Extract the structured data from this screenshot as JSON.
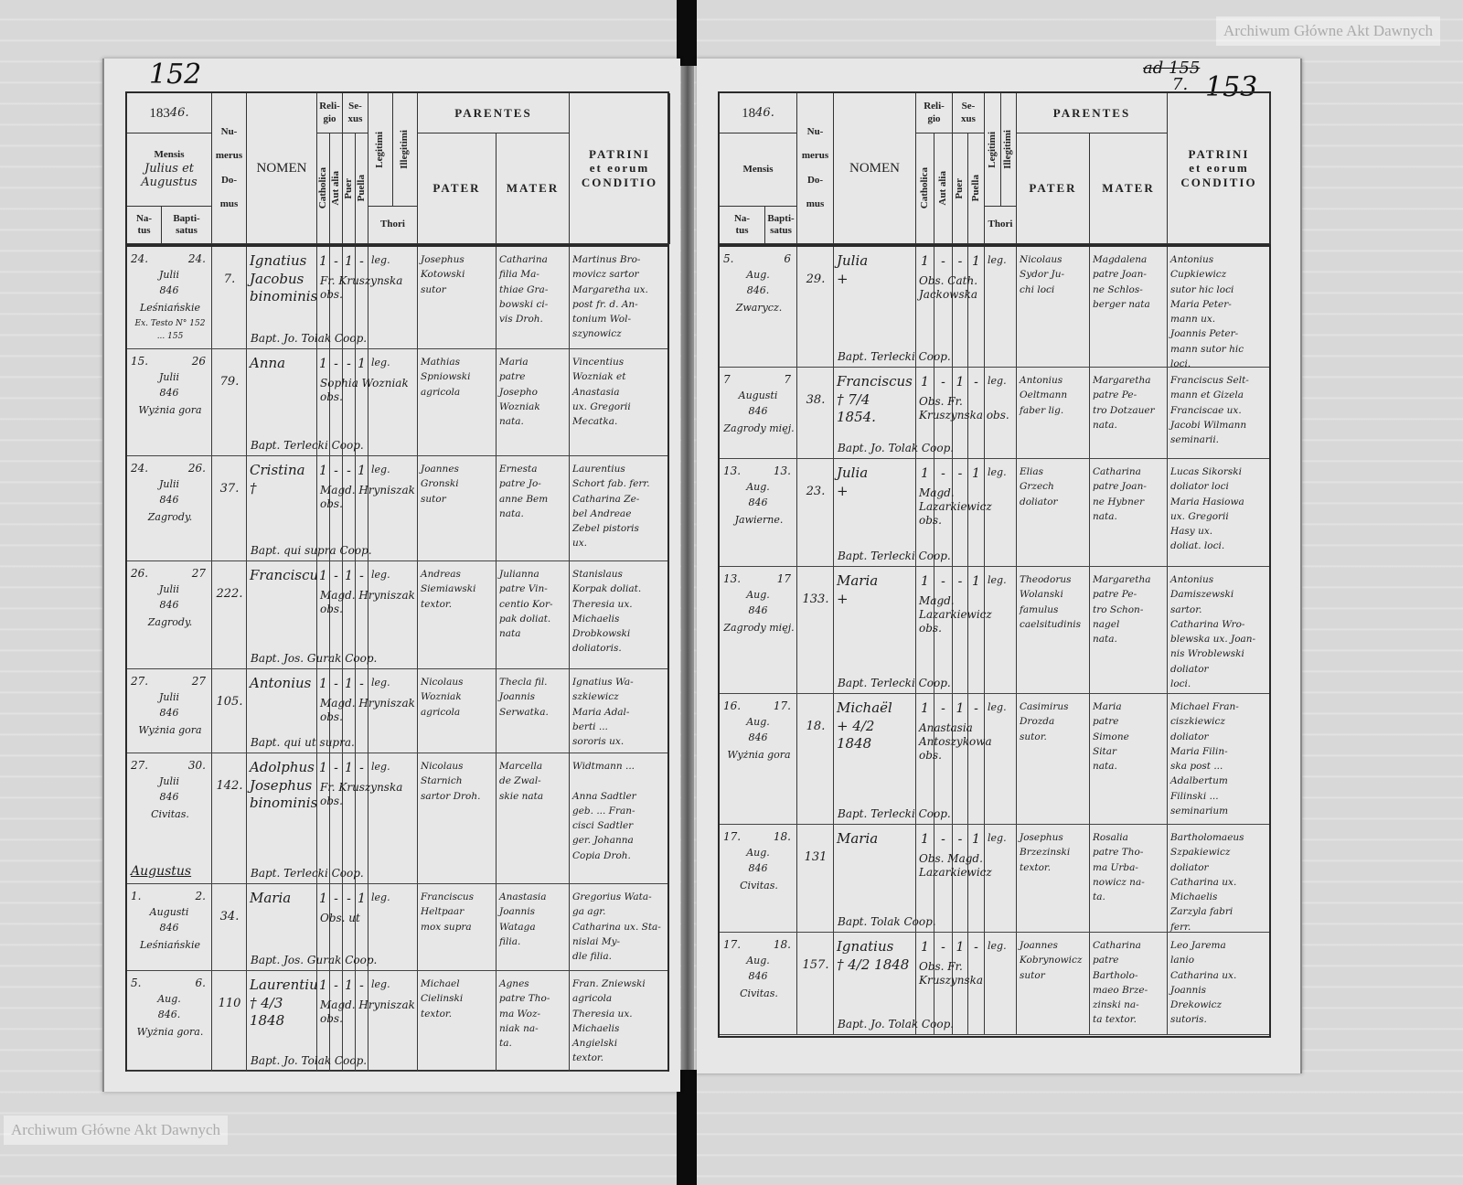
{
  "watermark": "Archiwum Główne Akt Dawnych",
  "header": {
    "year": "18",
    "year_hand": "46.",
    "mensis": "Mensis",
    "natus": "Na-\ntus",
    "baptisatus": "Bapti-\nsatus",
    "numerus_domus": "Nu-\n\nmerus\n\nDo-\n\nmus",
    "nomen": "NOMEN",
    "religio": "Reli-\ngio",
    "catholica": "Catholica",
    "aut_alia": "Aut alia",
    "sexus": "Se-\nxus",
    "puer": "Puer",
    "puella": "Puella",
    "legitimi": "Legitimi",
    "illegitimi": "Illegitimi",
    "thori": "Thori",
    "parentes": "PARENTES",
    "pater": "PATER",
    "mater": "MATER",
    "patrini": "PATRINI\net eorum\nCONDITIO"
  },
  "left_page": {
    "page_number": "152",
    "year_print": "183",
    "mensis_hand": "Julius et\nAugustus",
    "month_divider": "Augustus",
    "rows": [
      {
        "natus": "24.",
        "baptisatus": "24.",
        "mensis": "Julii\n846",
        "locus": "Leśniańskie",
        "domus": "7.",
        "nomen": "Ignatius\nJacobus\nbinominis",
        "catholica": "1",
        "aut_alia": "-",
        "puer": "1",
        "puella": "-",
        "legitimi": "leg.",
        "pater": "Josephus\nKotowski\nsutor",
        "mater": "Catharina\nfilia Ma-\nthiae Gra-\nbowski ci-\nvis Droh.",
        "patrini": "Martinus Bro-\nmovicz sartor\nMargaretha ux.\npost fr. d. An-\ntonium Wol-\nszynowicz",
        "baptizans": "Bapt. Jo. Tolak Coop.",
        "obstetrix": "Fr. Kruszynska obs.",
        "margin": "Ex. Testo N° 152\n... 155"
      },
      {
        "natus": "15.",
        "baptisatus": "26",
        "mensis": "Julii\n846",
        "locus": "Wyżnia gora",
        "domus": "79.",
        "nomen": "Anna",
        "catholica": "1",
        "aut_alia": "-",
        "puer": "-",
        "puella": "1",
        "legitimi": "leg.",
        "pater": "Mathias\nSpniowski\nagricola",
        "mater": "Maria\npatre\nJosepho\nWozniak\nnata.",
        "patrini": "Vincentius\nWozniak et\nAnastasia\nux. Gregorii\nMecatka.",
        "baptizans": "Bapt. Terlecki Coop.",
        "obstetrix": "Sophia Wozniak obs."
      },
      {
        "natus": "24.",
        "baptisatus": "26.",
        "mensis": "Julii\n846",
        "locus": "Zagrody.",
        "domus": "37.",
        "nomen": "Cristina\n†",
        "catholica": "1",
        "aut_alia": "-",
        "puer": "-",
        "puella": "1",
        "legitimi": "leg.",
        "pater": "Joannes\nGronski\nsutor",
        "mater": "Ernesta\npatre Jo-\nanne Bem\nnata.",
        "patrini": "Laurentius\nSchort fab. ferr.\nCatharina Ze-\nbel Andreae\nZebel pistoris\nux.",
        "baptizans": "Bapt. qui supra Coop.",
        "obstetrix": "Magd. Hryniszak obs."
      },
      {
        "natus": "26.",
        "baptisatus": "27",
        "mensis": "Julii\n846",
        "locus": "Zagrody.",
        "domus": "222.",
        "nomen": "Franciscus",
        "catholica": "1",
        "aut_alia": "-",
        "puer": "1",
        "puella": "-",
        "legitimi": "leg.",
        "pater": "Andreas\nSiemiawski\ntextor.",
        "mater": "Julianna\npatre Vin-\ncentio Kor-\npak doliat.\nnata",
        "patrini": "Stanislaus\nKorpak doliat.\nTheresia ux.\nMichaelis\nDrobkowski\ndoliatoris.",
        "baptizans": "Bapt. Jos. Gurak Coop.",
        "obstetrix": "Magd. Hryniszak obs."
      },
      {
        "natus": "27.",
        "baptisatus": "27",
        "mensis": "Julii\n846",
        "locus": "Wyżnia gora",
        "domus": "105.",
        "nomen": "Antonius",
        "catholica": "1",
        "aut_alia": "-",
        "puer": "1",
        "puella": "-",
        "legitimi": "leg.",
        "pater": "Nicolaus\nWozniak\nagricola",
        "mater": "Thecla fil.\nJoannis\nSerwatka.",
        "patrini": "Ignatius Wa-\nszkiewicz\nMaria Adal-\nberti ...\nsororis ux.",
        "baptizans": "Bapt. qui ut supra.",
        "obstetrix": "Magd. Hryniszak obs."
      },
      {
        "natus": "27.",
        "baptisatus": "30.",
        "mensis": "Julii\n846",
        "locus": "Civitas.",
        "domus": "142.",
        "nomen": "Adolphus\nJosephus\nbinominis",
        "catholica": "1",
        "aut_alia": "-",
        "puer": "1",
        "puella": "-",
        "legitimi": "leg.",
        "pater": "Nicolaus\nStarnich\nsartor Droh.",
        "mater": "Marcella\nde Zwal-\nskie nata",
        "patrini": "Widtmann ...\n\nAnna Sadtler\ngeb. ... Fran-\ncisci Sadtler\nger. Johanna\nCopia Droh.",
        "baptizans": "Bapt. Terlecki Coop.",
        "obstetrix": "Fr. Kruszynska obs."
      },
      {
        "natus": "1.",
        "baptisatus": "2.",
        "mensis": "Augusti\n846",
        "locus": "Leśniańskie",
        "domus": "34.",
        "nomen": "Maria",
        "catholica": "1",
        "aut_alia": "-",
        "puer": "-",
        "puella": "1",
        "legitimi": "leg.",
        "pater": "Franciscus\nHeltpaar\nmox supra",
        "mater": "Anastasia\nJoannis\nWataga\nfilia.",
        "patrini": "Gregorius Wata-\nga agr.\nCatharina ux. Sta-\nnislai My-\ndle filia.",
        "baptizans": "Bapt. Jos. Gurak Coop.",
        "obstetrix": "Obs. ut"
      },
      {
        "natus": "5.",
        "baptisatus": "6.",
        "mensis": "Aug.\n846.",
        "locus": "Wyżnia gora.",
        "domus": "110",
        "nomen": "Laurentius\n† 4/3 1848",
        "catholica": "1",
        "aut_alia": "-",
        "puer": "1",
        "puella": "-",
        "legitimi": "leg.",
        "pater": "Michael\nCielinski\ntextor.",
        "mater": "Agnes\npatre Tho-\nma Woz-\nniak na-\nta.",
        "patrini": "Fran. Zniewski\nagricola\nTheresia ux.\nMichaelis\nAngielski\ntextor.",
        "baptizans": "Bapt. Jo. Tolak Coop.",
        "obstetrix": "Magd. Hryniszak obs."
      }
    ]
  },
  "right_page": {
    "page_number": "153",
    "page_number_prefix": "7.",
    "old_page_number": "ad 155",
    "year_print": "18",
    "rows": [
      {
        "natus": "5.",
        "baptisatus": "6",
        "mensis": "Aug.\n846.",
        "locus": "Zwarycz.",
        "domus": "29.",
        "nomen": "Julia\n+",
        "catholica": "1",
        "aut_alia": "-",
        "puer": "-",
        "puella": "1",
        "legitimi": "leg.",
        "pater": "Nicolaus\nSydor Ju-\nchi loci",
        "mater": "Magdalena\npatre Joan-\nne Schlos-\nberger nata",
        "patrini": "Antonius\nCupkiewicz\nsutor hic loci\nMaria Peter-\nmann ux.\nJoannis Peter-\nmann sutor hic\nloci.",
        "baptizans": "Bapt. Terlecki Coop.",
        "obstetrix": "Obs. Cath. Jackowska"
      },
      {
        "natus": "7",
        "baptisatus": "7",
        "mensis": "Augusti\n846",
        "locus": "Zagrody mięj.",
        "domus": "38.",
        "nomen": "Franciscus\n† 7/4 1854.",
        "catholica": "1",
        "aut_alia": "-",
        "puer": "1",
        "puella": "-",
        "legitimi": "leg.",
        "pater": "Antonius\nOeltmann\nfaber lig.",
        "mater": "Margaretha\npatre Pe-\ntro Dotzauer\nnata.",
        "patrini": "Franciscus Selt-\nmann et Gizela\nFranciscae ux.\nJacobi Wilmann\nseminarii.",
        "baptizans": "Bapt. Jo. Tolak Coop.",
        "obstetrix": "Obs. Fr. Kruszynska obs."
      },
      {
        "natus": "13.",
        "baptisatus": "13.",
        "mensis": "Aug.\n846",
        "locus": "Jawierne.",
        "domus": "23.",
        "nomen": "Julia\n+",
        "catholica": "1",
        "aut_alia": "-",
        "puer": "-",
        "puella": "1",
        "legitimi": "leg.",
        "pater": "Elias\nGrzech\ndoliator",
        "mater": "Catharina\npatre Joan-\nne Hybner\nnata.",
        "patrini": "Lucas Sikorski\ndoliator loci\nMaria Hasiowa\nux. Gregorii\nHasy ux.\ndoliat. loci.",
        "baptizans": "Bapt. Terlecki Coop.",
        "obstetrix": "Magd. Lazarkiewicz obs."
      },
      {
        "natus": "13.",
        "baptisatus": "17",
        "mensis": "Aug.\n846",
        "locus": "Zagrody mięj.",
        "domus": "133.",
        "nomen": "Maria\n+",
        "catholica": "1",
        "aut_alia": "-",
        "puer": "-",
        "puella": "1",
        "legitimi": "leg.",
        "pater": "Theodorus\nWolanski\nfamulus\ncaelsitudinis",
        "mater": "Margaretha\npatre Pe-\ntro Schon-\nnagel\nnata.",
        "patrini": "Antonius\nDamiszewski\nsartor.\nCatharina Wro-\nblewska ux. Joan-\nnis Wroblewski\ndoliator\nloci.",
        "baptizans": "Bapt. Terlecki Coop.",
        "obstetrix": "Magd. Lazarkiewicz obs."
      },
      {
        "natus": "16.",
        "baptisatus": "17.",
        "mensis": "Aug.\n846",
        "locus": "Wyżnia gora",
        "domus": "18.",
        "nomen": "Michaël\n+ 4/2 1848",
        "catholica": "1",
        "aut_alia": "-",
        "puer": "1",
        "puella": "-",
        "legitimi": "leg.",
        "pater": "Casimirus\nDrozda\nsutor.",
        "mater": "Maria\npatre\nSimone\nSitar\nnata.",
        "patrini": "Michael Fran-\nciszkiewicz\ndoliator\nMaria Filin-\nska post ...\nAdalbertum\nFilinski ...\nseminarium",
        "baptizans": "Bapt. Terlecki Coop.",
        "obstetrix": "Anastasia Antoszykowa obs."
      },
      {
        "natus": "17.",
        "baptisatus": "18.",
        "mensis": "Aug.\n846",
        "locus": "Civitas.",
        "domus": "131",
        "nomen": "Maria",
        "catholica": "1",
        "aut_alia": "-",
        "puer": "-",
        "puella": "1",
        "legitimi": "leg.",
        "pater": "Josephus\nBrzezinski\ntextor.",
        "mater": "Rosalia\npatre Tho-\nma Urba-\nnowicz na-\nta.",
        "patrini": "Bartholomaeus\nSzpakiewicz\ndoliator\nCatharina ux.\nMichaelis\nZarzyla fabri\nferr.",
        "baptizans": "Bapt. Tolak Coop.",
        "obstetrix": "Obs. Magd. Lazarkiewicz"
      },
      {
        "natus": "17.",
        "baptisatus": "18.",
        "mensis": "Aug.\n846",
        "locus": "Civitas.",
        "domus": "157.",
        "nomen": "Ignatius\n† 4/2 1848",
        "catholica": "1",
        "aut_alia": "-",
        "puer": "1",
        "puella": "-",
        "legitimi": "leg.",
        "pater": "Joannes\nKobrynowicz\nsutor",
        "mater": "Catharina\npatre\nBartholo-\nmaeo Brze-\nzinski na-\nta textor.",
        "patrini": "Leo Jarema\nlanio\nCatharina ux.\nJoannis\nDrekowicz\nsutoris.",
        "baptizans": "Bapt. Jo. Tolak Coop.",
        "obstetrix": "Obs. Fr. Kruszynska"
      }
    ]
  }
}
